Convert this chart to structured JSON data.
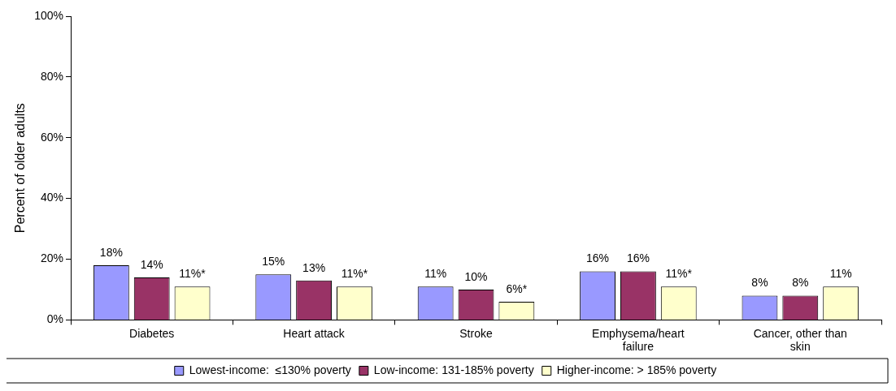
{
  "chart_data": {
    "type": "bar",
    "ylabel": "Percent of older adults",
    "categories": [
      "Diabetes",
      "Heart attack",
      "Stroke",
      "Emphysema/heart failure",
      "Cancer, other than skin"
    ],
    "series": [
      {
        "name": "Lowest-income:  ≤130% poverty",
        "color": "#9999ff",
        "values": [
          18,
          15,
          11,
          16,
          8
        ],
        "value_labels": [
          "18%",
          "15%",
          "11%",
          "16%",
          "8%"
        ]
      },
      {
        "name": "Low-income: 131-185% poverty",
        "color": "#993366",
        "values": [
          14,
          13,
          10,
          16,
          8
        ],
        "value_labels": [
          "14%",
          "13%",
          "10%",
          "16%",
          "8%"
        ]
      },
      {
        "name": "Higher-income: > 185% poverty",
        "color": "#ffffcc",
        "values": [
          11,
          11,
          6,
          11,
          11
        ],
        "value_labels": [
          "11%*",
          "11%*",
          "6%*",
          "11%*",
          "11%"
        ]
      }
    ],
    "ylim": [
      0,
      100
    ],
    "yticks": [
      {
        "value": 0,
        "label": "0%"
      },
      {
        "value": 20,
        "label": "20%"
      },
      {
        "value": 40,
        "label": "40%"
      },
      {
        "value": 60,
        "label": "60%"
      },
      {
        "value": 80,
        "label": "80%"
      },
      {
        "value": 100,
        "label": "100%"
      }
    ],
    "grid": false,
    "legend": "bottom"
  }
}
